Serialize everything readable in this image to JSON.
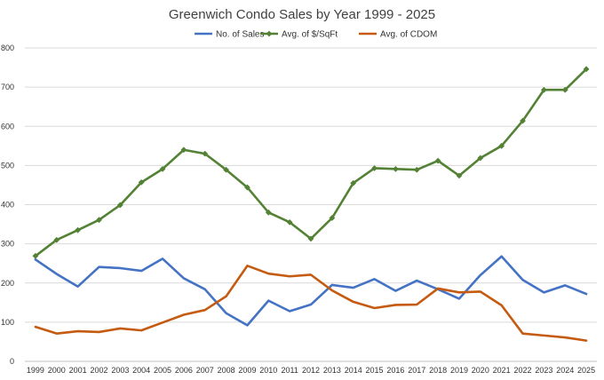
{
  "chart_data": {
    "type": "line",
    "title": "Greenwich Condo Sales by Year 1999 - 2025",
    "xlabel": "",
    "ylabel": "",
    "ylim": [
      0,
      800
    ],
    "yticks": [
      0,
      100,
      200,
      300,
      400,
      500,
      600,
      700,
      800
    ],
    "grid": true,
    "legend_position": "top",
    "categories": [
      "1999",
      "2000",
      "2001",
      "2002",
      "2003",
      "2004",
      "2005",
      "2006",
      "2007",
      "2008",
      "2009",
      "2010",
      "2011",
      "2012",
      "2013",
      "2014",
      "2015",
      "2016",
      "2017",
      "2018",
      "2019",
      "2020",
      "2021",
      "2022",
      "2023",
      "2024",
      "2025"
    ],
    "series": [
      {
        "name": "No. of Sales",
        "color": "#4472C4",
        "marker": "none",
        "values": [
          260,
          223,
          191,
          241,
          238,
          231,
          262,
          212,
          184,
          123,
          92,
          155,
          128,
          145,
          195,
          188,
          210,
          180,
          206,
          184,
          160,
          220,
          268,
          208,
          176,
          194,
          172
        ]
      },
      {
        "name": "Avg. of $/SqFt",
        "color": "#548235",
        "marker": "diamond",
        "values": [
          269,
          310,
          335,
          361,
          399,
          457,
          491,
          540,
          530,
          489,
          444,
          380,
          355,
          313,
          366,
          455,
          493,
          491,
          489,
          512,
          474,
          519,
          550,
          614,
          693,
          693,
          746
        ]
      },
      {
        "name": "Avg. of CDOM",
        "color": "#C55A11",
        "marker": "none",
        "values": [
          88,
          71,
          77,
          75,
          84,
          79,
          99,
          119,
          131,
          166,
          244,
          224,
          217,
          221,
          181,
          152,
          136,
          144,
          145,
          186,
          176,
          178,
          143,
          71,
          66,
          61,
          53
        ]
      }
    ]
  }
}
